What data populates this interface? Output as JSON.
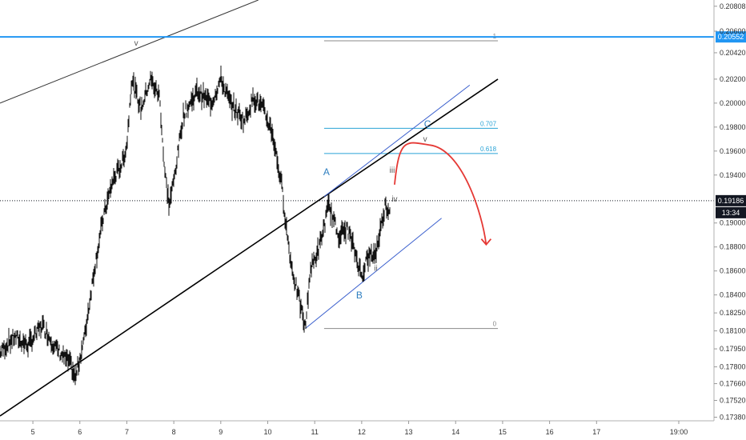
{
  "chart_data": {
    "type": "candlestick",
    "x_ticks": [
      "5",
      "6",
      "7",
      "8",
      "9",
      "10",
      "11",
      "12",
      "13",
      "14",
      "15",
      "16",
      "17",
      "19:00"
    ],
    "y_ticks": [
      "0.20808",
      "0.20600",
      "0.20420",
      "0.20200",
      "0.20000",
      "0.19800",
      "0.19600",
      "0.19400",
      "0.19000",
      "0.18800",
      "0.18600",
      "0.18400",
      "0.18250",
      "0.18100",
      "0.17950",
      "0.17800",
      "0.17660",
      "0.17520",
      "0.17380"
    ],
    "ylim": [
      0.1735,
      0.2086
    ],
    "xlim": [
      4.3,
      19.5
    ],
    "resistance_level": {
      "value": 0.20552,
      "label": "0.20552",
      "color": "#2196f3"
    },
    "current_price": {
      "value": 0.19186,
      "label": "0.19186",
      "countdown": "13:34",
      "color": "#131722"
    },
    "price_path": [
      [
        4.3,
        0.1792
      ],
      [
        4.6,
        0.1805
      ],
      [
        4.9,
        0.1798
      ],
      [
        5.2,
        0.1815
      ],
      [
        5.5,
        0.1795
      ],
      [
        5.8,
        0.1782
      ],
      [
        5.9,
        0.177
      ],
      [
        6.1,
        0.1805
      ],
      [
        6.3,
        0.186
      ],
      [
        6.5,
        0.1905
      ],
      [
        6.7,
        0.1935
      ],
      [
        6.9,
        0.195
      ],
      [
        7.0,
        0.1965
      ],
      [
        7.1,
        0.202
      ],
      [
        7.3,
        0.1995
      ],
      [
        7.5,
        0.202
      ],
      [
        7.7,
        0.2005
      ],
      [
        7.8,
        0.1945
      ],
      [
        7.9,
        0.1915
      ],
      [
        8.0,
        0.1935
      ],
      [
        8.2,
        0.199
      ],
      [
        8.5,
        0.201
      ],
      [
        8.8,
        0.2
      ],
      [
        9.0,
        0.202
      ],
      [
        9.2,
        0.2
      ],
      [
        9.5,
        0.1985
      ],
      [
        9.7,
        0.2005
      ],
      [
        9.9,
        0.1995
      ],
      [
        10.1,
        0.1975
      ],
      [
        10.3,
        0.193
      ],
      [
        10.4,
        0.1895
      ],
      [
        10.5,
        0.1865
      ],
      [
        10.7,
        0.183
      ],
      [
        10.8,
        0.1812
      ],
      [
        10.9,
        0.186
      ],
      [
        11.1,
        0.188
      ],
      [
        11.3,
        0.1915
      ],
      [
        11.5,
        0.189
      ],
      [
        11.7,
        0.1895
      ],
      [
        11.9,
        0.187
      ],
      [
        12.0,
        0.1855
      ],
      [
        12.1,
        0.187
      ],
      [
        12.3,
        0.1875
      ],
      [
        12.4,
        0.1895
      ],
      [
        12.5,
        0.1915
      ],
      [
        12.6,
        0.191
      ]
    ],
    "trendlines": [
      {
        "name": "upper-rising-line",
        "color": "#333333",
        "from": [
          4.3,
          0.2
        ],
        "to": [
          9.8,
          0.2086
        ]
      },
      {
        "name": "main-support-line",
        "color": "#000000",
        "from": [
          4.3,
          0.1739
        ],
        "to": [
          14.9,
          0.202
        ]
      },
      {
        "name": "channel-upper-line",
        "color": "#3a5fcd",
        "from": [
          11.2,
          0.1922
        ],
        "to": [
          14.3,
          0.2015
        ]
      },
      {
        "name": "channel-lower-line",
        "color": "#3a5fcd",
        "from": [
          10.8,
          0.1812
        ],
        "to": [
          13.7,
          0.1904
        ]
      }
    ],
    "fibonacci": [
      {
        "label": "1",
        "value": 0.2052,
        "color": "#888888"
      },
      {
        "label": "0.707",
        "value": 0.1979,
        "color": "#29a3d6"
      },
      {
        "label": "0.618",
        "value": 0.1958,
        "color": "#29a3d6"
      },
      {
        "label": "0",
        "value": 0.1812,
        "color": "#888888"
      }
    ],
    "fib_x_range": [
      11.2,
      14.9
    ],
    "wave_labels": [
      {
        "text": "v",
        "x": 7.2,
        "y": 0.2048,
        "color": "#3a5fcd",
        "kind": "sub"
      },
      {
        "text": "A",
        "x": 11.25,
        "y": 0.194,
        "color": "#2f7fc0",
        "kind": "main"
      },
      {
        "text": "B",
        "x": 11.95,
        "y": 0.1837,
        "color": "#2f7fc0",
        "kind": "main"
      },
      {
        "text": "C",
        "x": 13.4,
        "y": 0.198,
        "color": "#2f7fc0",
        "kind": "main"
      },
      {
        "text": "iii",
        "x": 12.65,
        "y": 0.1942,
        "color": "#555555",
        "kind": "sub"
      },
      {
        "text": "iv",
        "x": 12.7,
        "y": 0.1918,
        "color": "#555555",
        "kind": "sub"
      },
      {
        "text": "ii",
        "x": 12.3,
        "y": 0.186,
        "color": "#555555",
        "kind": "sub"
      },
      {
        "text": "v",
        "x": 13.35,
        "y": 0.1968,
        "color": "#555555",
        "kind": "sub"
      }
    ],
    "projection": {
      "color": "#e53935",
      "start": [
        12.7,
        0.1932
      ],
      "peak": [
        13.45,
        0.1965
      ],
      "end": [
        14.65,
        0.1882
      ]
    }
  }
}
